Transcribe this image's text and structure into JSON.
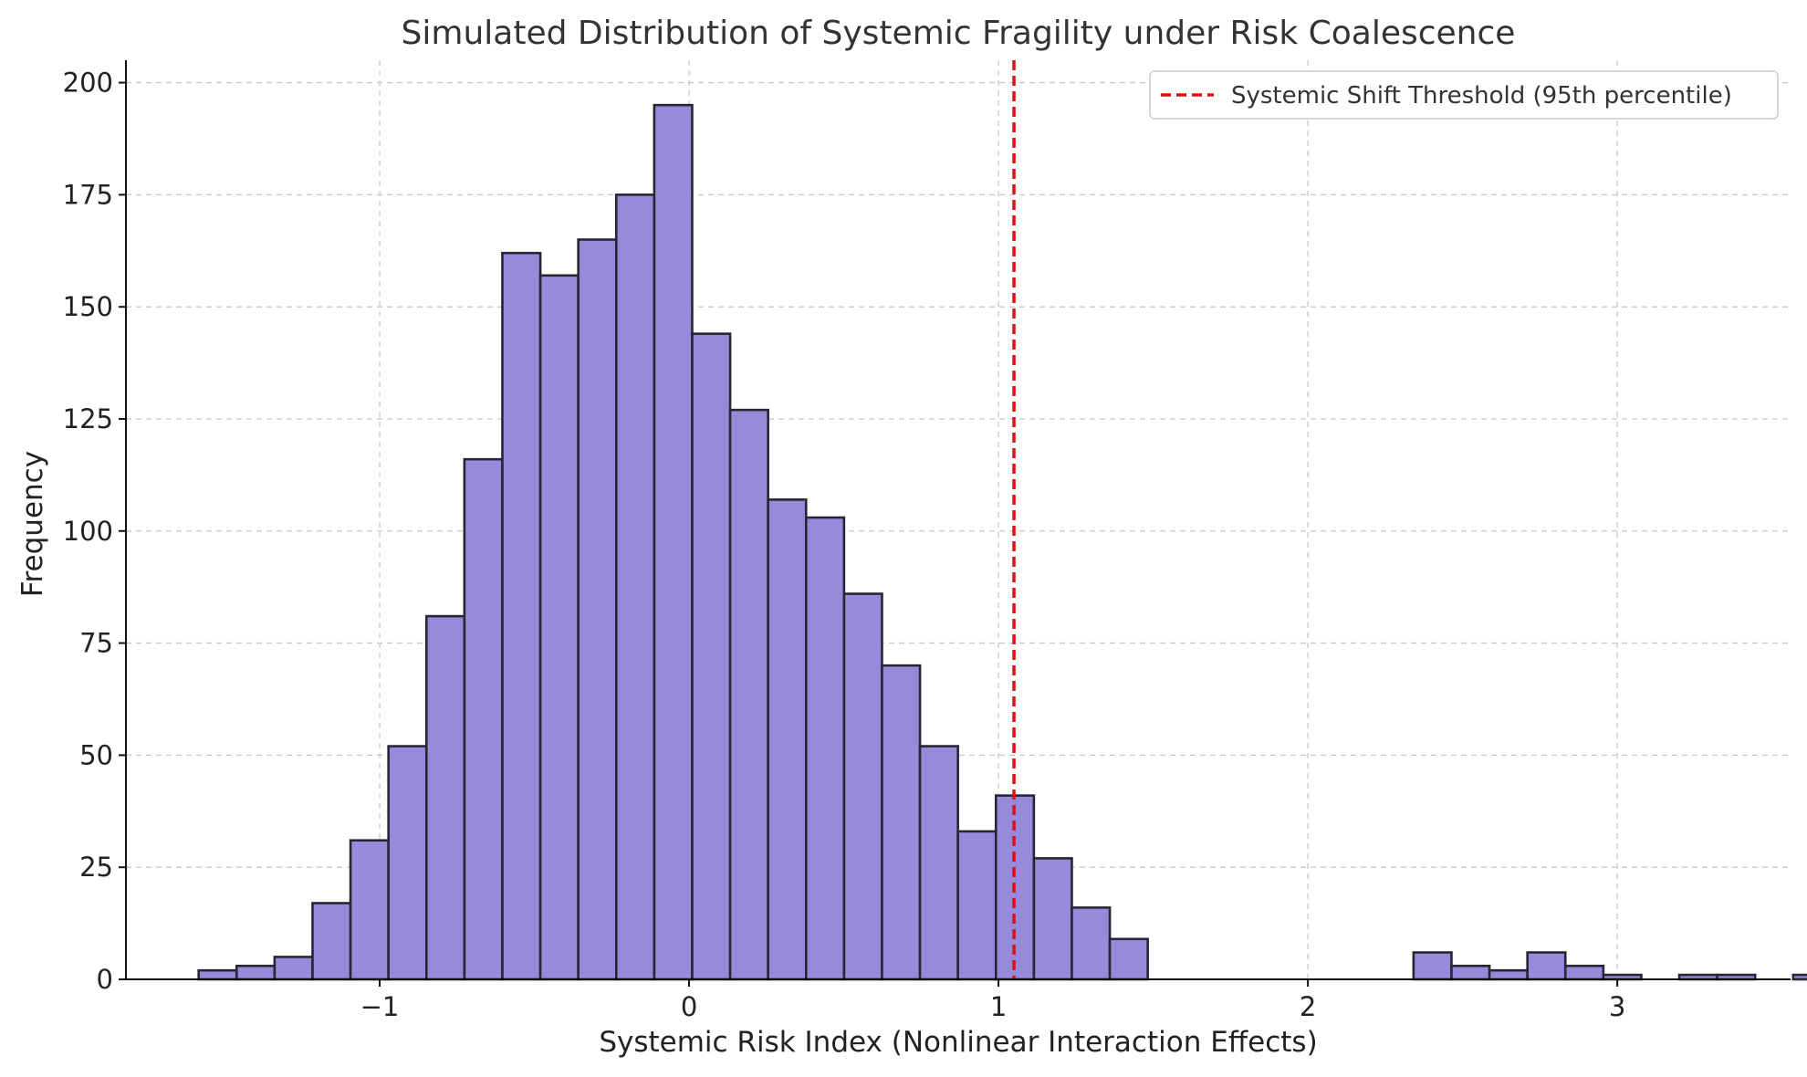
{
  "chart_data": {
    "type": "bar",
    "title": "Simulated Distribution of Systemic Fragility under Risk Coalescence",
    "xlabel": "Systemic Risk Index (Nonlinear Interaction Effects)",
    "ylabel": "Frequency",
    "xlim": [
      -1.82,
      3.56
    ],
    "ylim": [
      0,
      205
    ],
    "grid": true,
    "bin_width": 0.1227,
    "bin_edges_start": -1.585,
    "values": [
      2,
      3,
      5,
      17,
      31,
      52,
      81,
      116,
      162,
      157,
      165,
      175,
      195,
      144,
      127,
      107,
      103,
      86,
      70,
      52,
      33,
      41,
      27,
      16,
      9,
      0,
      0,
      0,
      0,
      0,
      0,
      0,
      6,
      3,
      2,
      6,
      3,
      1,
      0,
      1,
      1,
      0,
      1
    ],
    "x_ticks": [
      -1,
      0,
      1,
      2,
      3
    ],
    "x_tick_labels": [
      "−1",
      "0",
      "1",
      "2",
      "3"
    ],
    "y_ticks": [
      0,
      25,
      50,
      75,
      100,
      125,
      150,
      175,
      200
    ],
    "y_tick_labels": [
      "0",
      "25",
      "50",
      "75",
      "100",
      "125",
      "150",
      "175",
      "200"
    ],
    "threshold": {
      "name": "Systemic Shift Threshold (95th percentile)",
      "x": 1.05,
      "color": "#dd1111"
    },
    "bar_color": "#968bdb",
    "edge_color": "#2a2535",
    "legend_position": "top-right"
  }
}
